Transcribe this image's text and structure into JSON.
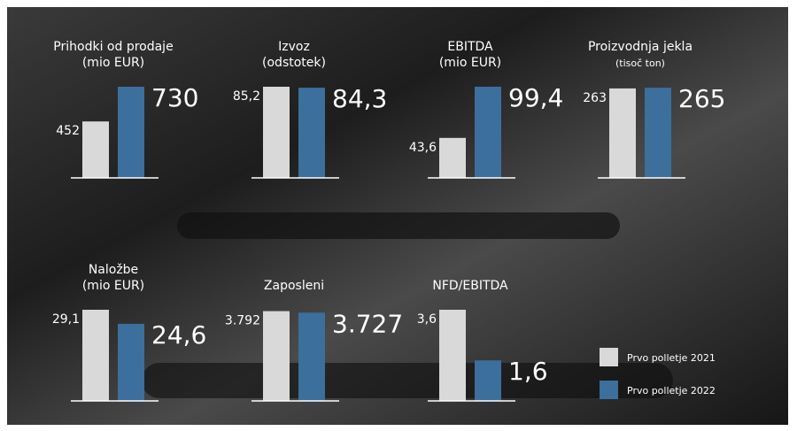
{
  "legend": [
    {
      "name": "Prvo polletje 2021",
      "color": "#d9d9d9"
    },
    {
      "name": "Prvo polletje 2022",
      "color": "#3c6f9c"
    }
  ],
  "chart_data": [
    {
      "type": "bar",
      "title": "Prihodki od prodaje",
      "subtitle": "(mio EUR)",
      "values": [
        452,
        730
      ],
      "ylim": [
        0,
        730
      ]
    },
    {
      "type": "bar",
      "title": "Izvoz",
      "subtitle": "(odstotek)",
      "values": [
        85.2,
        84.3
      ],
      "value_labels": [
        "85,2",
        "84,3"
      ],
      "ylim": [
        0,
        85.2
      ]
    },
    {
      "type": "bar",
      "title": "EBITDA",
      "subtitle": "(mio EUR)",
      "values": [
        43.6,
        99.4
      ],
      "value_labels": [
        "43,6",
        "99,4"
      ],
      "ylim": [
        0,
        99.4
      ]
    },
    {
      "type": "bar",
      "title": "Proizvodnja jekla",
      "subtitle": "(tisoč ton)",
      "values": [
        263,
        265
      ],
      "ylim": [
        0,
        268
      ]
    },
    {
      "type": "bar",
      "title": "Naložbe",
      "subtitle": "(mio EUR)",
      "values": [
        29.1,
        24.6
      ],
      "value_labels": [
        "29,1",
        "24,6"
      ],
      "ylim": [
        0,
        29.1
      ]
    },
    {
      "type": "bar",
      "title": "Zaposleni",
      "values": [
        3792,
        3727
      ],
      "value_labels": [
        "3.792",
        "3.727"
      ],
      "ylim": [
        0,
        3850
      ]
    },
    {
      "type": "bar",
      "title": "NFD/EBITDA",
      "values": [
        3.6,
        1.6
      ],
      "value_labels": [
        "3,6",
        "1,6"
      ],
      "ylim": [
        0,
        3.6
      ]
    }
  ]
}
